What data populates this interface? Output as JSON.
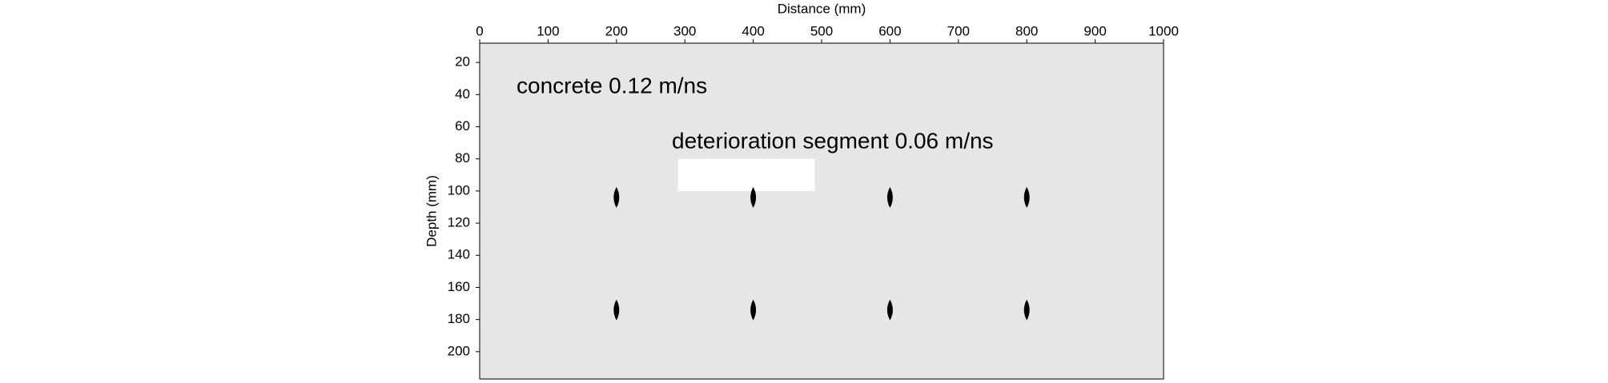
{
  "chart_data": {
    "type": "scatter",
    "x_label": "Distance (mm)",
    "y_label": "Depth (mm)",
    "x": [
      200,
      400,
      600,
      800,
      200,
      400,
      600,
      800
    ],
    "values": [
      104,
      104,
      104,
      104,
      174,
      174,
      174,
      174
    ],
    "color": "#000000",
    "background": "#e6e6e6",
    "xlim": [
      0,
      1000
    ],
    "xticks": [
      0,
      100,
      200,
      300,
      400,
      500,
      600,
      700,
      800,
      900,
      1000
    ],
    "ylim": [
      8,
      217
    ],
    "yticks": [
      20,
      40,
      60,
      80,
      100,
      120,
      140,
      160,
      180,
      200
    ],
    "y_inverted": true,
    "segment": {
      "x": [
        290,
        490
      ],
      "y": [
        80,
        100
      ],
      "color": "#ffffff"
    },
    "annotations": [
      "concrete 0.12 m/ns",
      "deterioration segment 0.06 m/ns"
    ]
  }
}
